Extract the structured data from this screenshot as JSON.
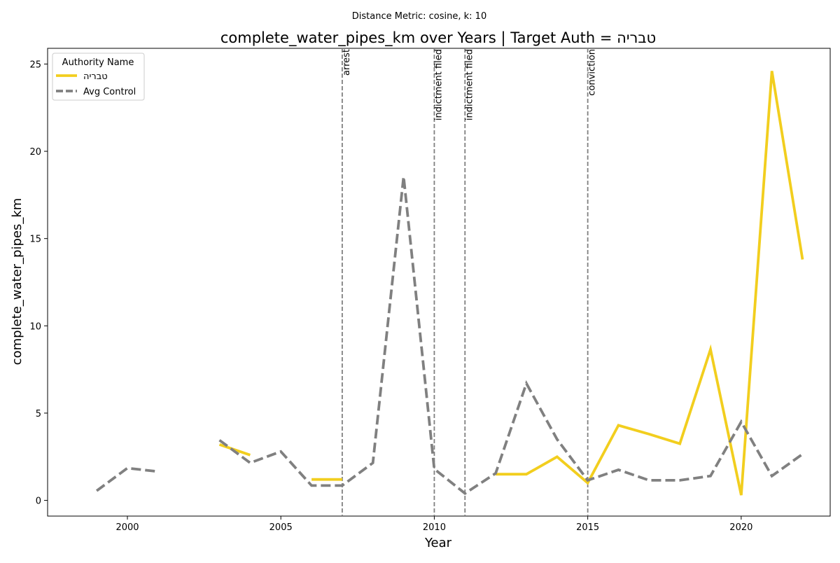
{
  "chart_data": {
    "type": "line",
    "suptitle": "Distance Metric: cosine, k: 10",
    "title": "complete_water_pipes_km over Years | Target Auth = טבריה",
    "xlabel": "Year",
    "ylabel": "complete_water_pipes_km",
    "xlim": [
      1997.4,
      2022.9
    ],
    "ylim": [
      -0.9,
      25.9
    ],
    "xticks": [
      2000,
      2005,
      2010,
      2015,
      2020
    ],
    "yticks": [
      0,
      5,
      10,
      15,
      20,
      25
    ],
    "grid": false,
    "legend": {
      "title": "Authority Name",
      "placement": "top-left"
    },
    "series": [
      {
        "name": "טבריה",
        "color": "#f2ce1e",
        "style": "solid",
        "points": [
          [
            2003,
            3.2
          ],
          [
            2004,
            2.6
          ],
          null,
          [
            2006,
            1.2
          ],
          [
            2007,
            1.2
          ],
          null,
          [
            2012,
            1.5
          ],
          [
            2013,
            1.5
          ],
          [
            2014,
            2.5
          ],
          [
            2015,
            1.0
          ],
          [
            2016,
            4.3
          ],
          [
            2017,
            3.8
          ],
          [
            2018,
            3.25
          ],
          [
            2019,
            8.65
          ],
          [
            2020,
            0.3
          ],
          [
            2021,
            24.6
          ],
          [
            2022,
            13.8
          ]
        ]
      },
      {
        "name": "Avg Control",
        "color": "#808080",
        "style": "dashed",
        "points": [
          [
            1999,
            0.55
          ],
          [
            2000,
            1.85
          ],
          [
            2001,
            1.65
          ],
          null,
          [
            2003,
            3.45
          ],
          [
            2004,
            2.15
          ],
          [
            2005,
            2.8
          ],
          [
            2006,
            0.85
          ],
          [
            2007,
            0.85
          ],
          [
            2008,
            2.15
          ],
          [
            2009,
            18.55
          ],
          [
            2010,
            1.8
          ],
          [
            2011,
            0.4
          ],
          [
            2012,
            1.55
          ],
          [
            2013,
            6.7
          ],
          [
            2014,
            3.5
          ],
          [
            2015,
            1.15
          ],
          [
            2016,
            1.75
          ],
          [
            2017,
            1.15
          ],
          [
            2018,
            1.15
          ],
          [
            2019,
            1.4
          ],
          [
            2020,
            4.5
          ],
          [
            2021,
            1.4
          ],
          [
            2022,
            2.65
          ]
        ]
      }
    ],
    "events": [
      {
        "x": 2007,
        "label": "arrest"
      },
      {
        "x": 2010,
        "label": "indictment filed"
      },
      {
        "x": 2011,
        "label": "indictment filed"
      },
      {
        "x": 2015,
        "label": "conviction"
      }
    ]
  }
}
